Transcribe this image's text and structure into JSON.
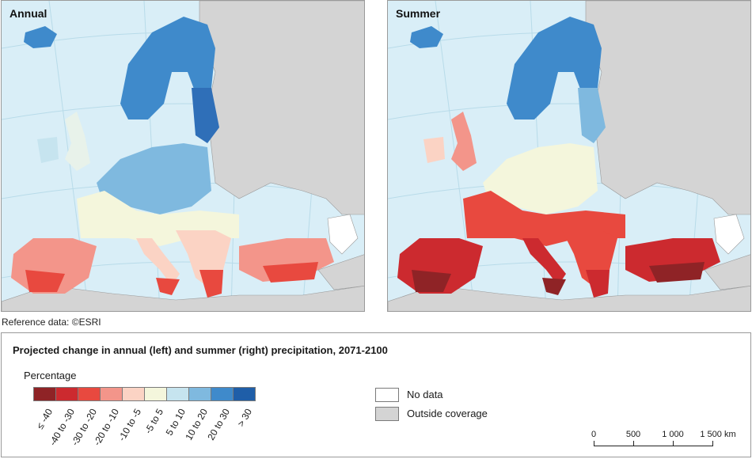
{
  "maps": {
    "left": {
      "title": "Annual"
    },
    "right": {
      "title": "Summer"
    }
  },
  "reference": "Reference data: ©ESRI",
  "legend": {
    "title": "Projected change in annual (left) and summer (right) precipitation, 2071-2100",
    "subtitle": "Percentage",
    "classes": [
      {
        "label": "≤ -40",
        "color": "#8f2326"
      },
      {
        "label": "-40 to -30",
        "color": "#cc2a2f"
      },
      {
        "label": "-30 to -20",
        "color": "#e8493f"
      },
      {
        "label": "-20 to -10",
        "color": "#f3958a"
      },
      {
        "label": "-10 to -5",
        "color": "#fbd3c4"
      },
      {
        "label": "-5 to 5",
        "color": "#f4f6dc"
      },
      {
        "label": "5 to 10",
        "color": "#c6e4ef"
      },
      {
        "label": "10 to 20",
        "color": "#7fb9df"
      },
      {
        "label": "20 to 30",
        "color": "#3f8acb"
      },
      {
        "label": "> 30",
        "color": "#1f5ea8"
      }
    ],
    "no_data": {
      "label": "No data",
      "color": "#ffffff"
    },
    "outside": {
      "label": "Outside coverage",
      "color": "#d4d4d4"
    }
  },
  "scale_bar": {
    "labels": [
      "0",
      "500",
      "1 000",
      "1 500 km"
    ]
  },
  "colors": {
    "sea": "#d9eef7",
    "outside_land": "#d4d4d4",
    "border": "#8c8c8c"
  }
}
